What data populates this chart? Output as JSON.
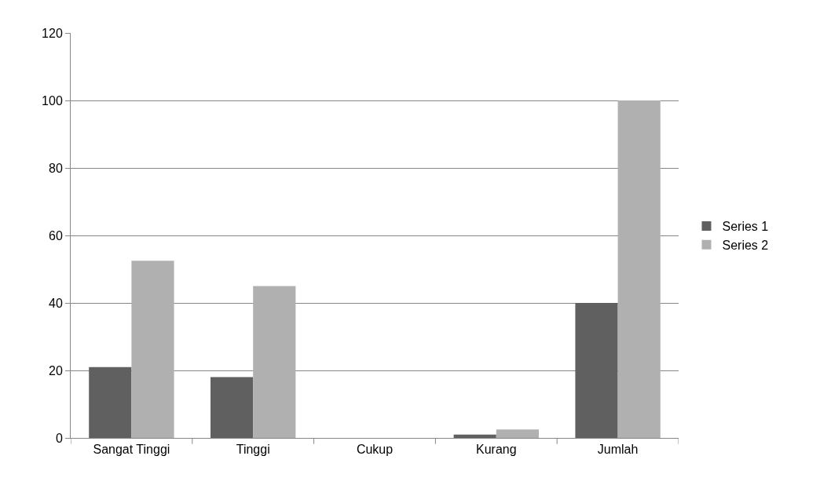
{
  "chart_data": {
    "type": "bar",
    "categories": [
      "Sangat Tinggi",
      "Tinggi",
      "Cukup",
      "Kurang",
      "Jumlah"
    ],
    "series": [
      {
        "name": "Series 1",
        "color": "#606060",
        "values": [
          21,
          18,
          0,
          1,
          40
        ]
      },
      {
        "name": "Series 2",
        "color": "#b0b0b0",
        "values": [
          52.5,
          45,
          0,
          2.5,
          100
        ]
      }
    ],
    "ylim": [
      0,
      120
    ],
    "yticks": [
      0,
      20,
      40,
      60,
      80,
      100,
      120
    ],
    "grid": "y",
    "legend": "right"
  }
}
